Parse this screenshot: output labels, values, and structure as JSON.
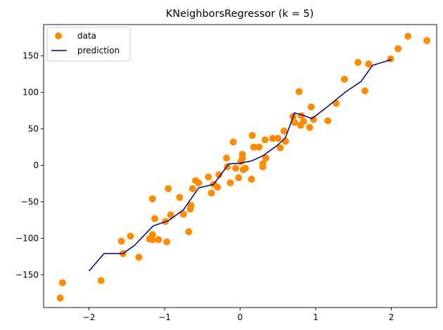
{
  "chart_data": {
    "type": "scatter",
    "title": "KNeighborsRegressor (k = 5)",
    "xlabel": "",
    "ylabel": "",
    "xlim": [
      -2.6,
      2.6
    ],
    "ylim": [
      -195,
      193
    ],
    "xticks": [
      -2,
      -1,
      0,
      1,
      2
    ],
    "xtick_labels": [
      "−2",
      "−1",
      "0",
      "1",
      "2"
    ],
    "yticks": [
      -150,
      -100,
      -50,
      0,
      50,
      100,
      150
    ],
    "ytick_labels": [
      "−150",
      "−100",
      "−50",
      "0",
      "50",
      "100",
      "150"
    ],
    "grid": false,
    "legend_position": "top-left",
    "colors": {
      "data": "#ff8c00",
      "prediction": "#000080",
      "axes": "#000000",
      "background": "#ffffff"
    },
    "series": [
      {
        "name": "data",
        "kind": "scatter",
        "points": [
          [
            -2.38,
            -182
          ],
          [
            -2.35,
            -161
          ],
          [
            -1.84,
            -158
          ],
          [
            -1.57,
            -104
          ],
          [
            -1.55,
            -121
          ],
          [
            -1.45,
            -97
          ],
          [
            -1.34,
            -126
          ],
          [
            -1.2,
            -101
          ],
          [
            -1.16,
            -95
          ],
          [
            -1.16,
            -102
          ],
          [
            -1.16,
            -46
          ],
          [
            -1.13,
            -73
          ],
          [
            -1.08,
            -102
          ],
          [
            -0.99,
            -77
          ],
          [
            -0.97,
            -105
          ],
          [
            -0.95,
            -32
          ],
          [
            -0.92,
            -68
          ],
          [
            -0.8,
            -44
          ],
          [
            -0.75,
            -67
          ],
          [
            -0.68,
            -91
          ],
          [
            -0.66,
            -60
          ],
          [
            -0.65,
            -55
          ],
          [
            -0.63,
            -32
          ],
          [
            -0.59,
            -21
          ],
          [
            -0.55,
            -24
          ],
          [
            -0.42,
            -16
          ],
          [
            -0.38,
            -38
          ],
          [
            -0.35,
            -26
          ],
          [
            -0.3,
            -30
          ],
          [
            -0.28,
            -13
          ],
          [
            -0.18,
            10
          ],
          [
            -0.17,
            -2
          ],
          [
            -0.13,
            -24
          ],
          [
            -0.09,
            32
          ],
          [
            -0.06,
            -4
          ],
          [
            -0.02,
            -17
          ],
          [
            0.01,
            5
          ],
          [
            0.03,
            15
          ],
          [
            0.03,
            10
          ],
          [
            0.04,
            -6
          ],
          [
            0.07,
            -4
          ],
          [
            0.15,
            -19
          ],
          [
            0.16,
            41
          ],
          [
            0.18,
            25
          ],
          [
            0.25,
            25
          ],
          [
            0.3,
            -2
          ],
          [
            0.3,
            2
          ],
          [
            0.33,
            35
          ],
          [
            0.34,
            10
          ],
          [
            0.43,
            37
          ],
          [
            0.5,
            37
          ],
          [
            0.53,
            24
          ],
          [
            0.58,
            47
          ],
          [
            0.6,
            33
          ],
          [
            0.7,
            67
          ],
          [
            0.72,
            59
          ],
          [
            0.78,
            101
          ],
          [
            0.8,
            55
          ],
          [
            0.81,
            68
          ],
          [
            0.84,
            60
          ],
          [
            0.92,
            52
          ],
          [
            0.94,
            80
          ],
          [
            0.97,
            63
          ],
          [
            1.16,
            61
          ],
          [
            1.27,
            85
          ],
          [
            1.38,
            118
          ],
          [
            1.56,
            141
          ],
          [
            1.65,
            102
          ],
          [
            1.7,
            139
          ],
          [
            1.99,
            146
          ],
          [
            2.09,
            160
          ],
          [
            2.22,
            177
          ],
          [
            2.47,
            171
          ]
        ]
      },
      {
        "name": "prediction",
        "kind": "line",
        "points": [
          [
            -2.0,
            -145
          ],
          [
            -1.8,
            -121
          ],
          [
            -1.55,
            -121
          ],
          [
            -1.4,
            -110
          ],
          [
            -1.15,
            -83
          ],
          [
            -0.95,
            -76
          ],
          [
            -0.75,
            -61
          ],
          [
            -0.55,
            -31
          ],
          [
            -0.35,
            -26
          ],
          [
            -0.15,
            2
          ],
          [
            0.0,
            3
          ],
          [
            0.15,
            6
          ],
          [
            0.3,
            13
          ],
          [
            0.5,
            28
          ],
          [
            0.6,
            38
          ],
          [
            0.72,
            72
          ],
          [
            0.85,
            68
          ],
          [
            0.95,
            64
          ],
          [
            1.15,
            80
          ],
          [
            1.4,
            101
          ],
          [
            1.6,
            115
          ],
          [
            1.75,
            137
          ],
          [
            2.0,
            145
          ]
        ]
      }
    ]
  }
}
